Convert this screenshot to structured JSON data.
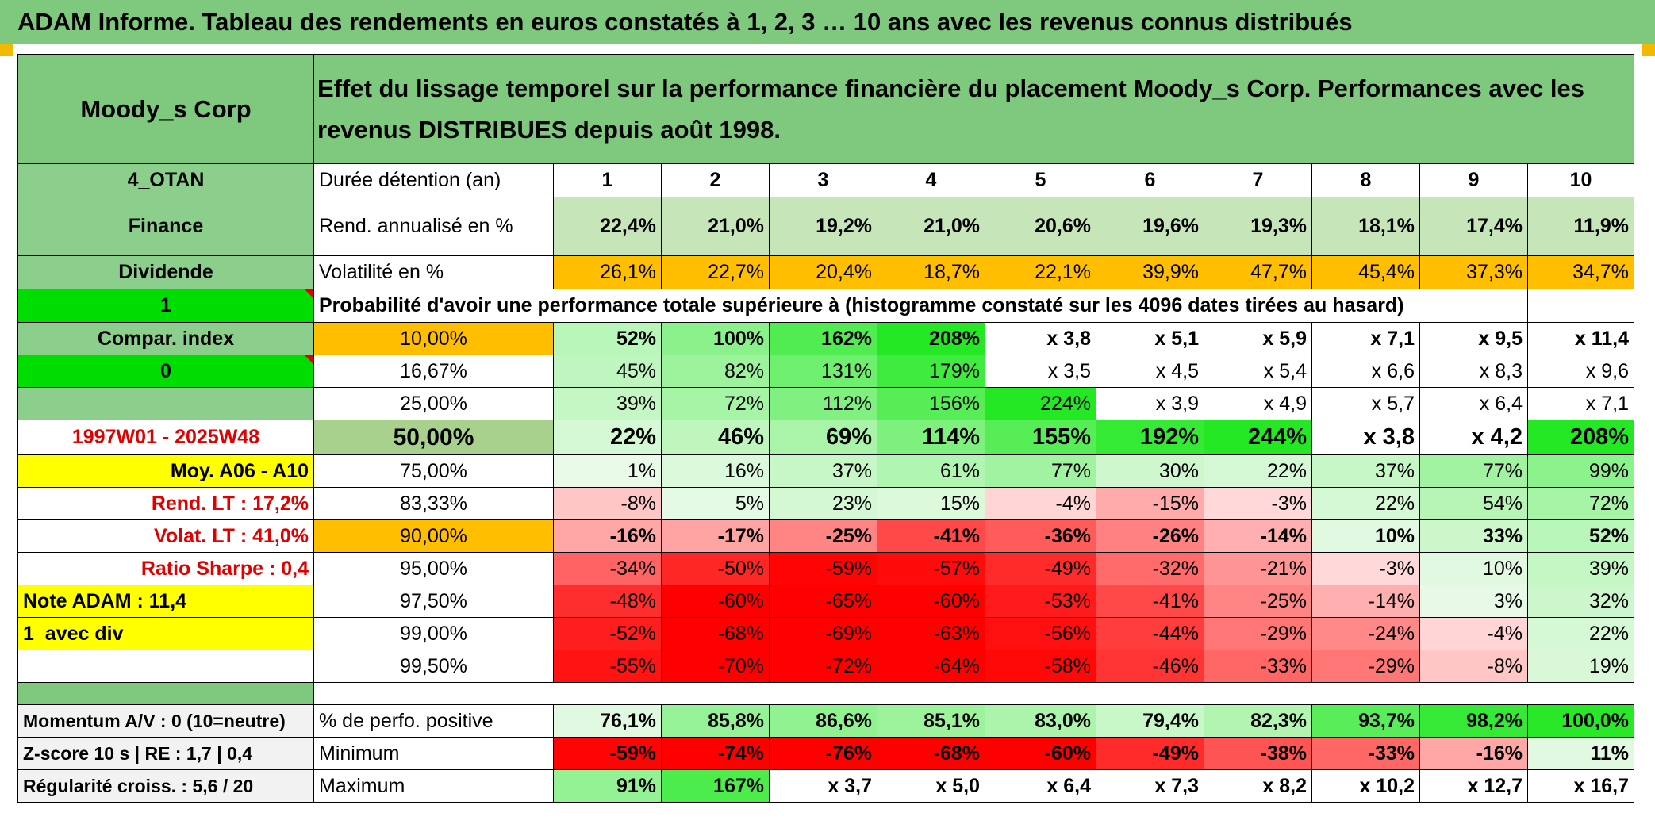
{
  "title": "ADAM Informe. Tableau des rendements en euros constatés à 1, 2, 3 … 10 ans avec les revenus connus distribués",
  "colors": {
    "header_green": "#7fc97f",
    "label_green": "#8ccf8c",
    "bright_green": "#00dd00",
    "orange": "#ffbe00",
    "yellow": "#ffff00",
    "grey": "#f2f2f2",
    "red_text": "#e00000"
  },
  "header": {
    "asset_name": "Moody_s Corp",
    "description": "Effet du lissage temporel sur la performance financière du placement Moody_s Corp. Performances avec les revenus DISTRIBUES depuis août 1998."
  },
  "left_labels": {
    "code": "4_OTAN",
    "sector": "Finance",
    "type": "Dividende",
    "flag1": "1",
    "compar": "Compar. index",
    "flag0": "0",
    "blank": "",
    "period": "1997W01 - 2025W48",
    "moy": "Moy. A06 - A10",
    "rend_lt": "Rend. LT :    17,2%",
    "volat_lt": "Volat. LT :    41,0%",
    "sharpe": "Ratio Sharpe :    0,4",
    "note": "Note ADAM : 11,4",
    "avec_div": "1_avec div"
  },
  "table": {
    "duration_label": "Durée détention (an)",
    "years": [
      "1",
      "2",
      "3",
      "4",
      "5",
      "6",
      "7",
      "8",
      "9",
      "10"
    ],
    "rend_label": "Rend. annualisé en %",
    "rend": [
      "22,4%",
      "21,0%",
      "19,2%",
      "21,0%",
      "20,6%",
      "19,6%",
      "19,3%",
      "18,1%",
      "17,4%",
      "11,9%"
    ],
    "vol_label": "Volatilité en %",
    "vol": [
      "26,1%",
      "22,7%",
      "20,4%",
      "18,7%",
      "22,1%",
      "39,9%",
      "47,7%",
      "45,4%",
      "37,3%",
      "34,7%"
    ],
    "prob_title": "Probabilité d'avoir une performance totale supérieure à (histogramme constaté sur les 4096 dates tirées au hasard)",
    "quantiles": [
      {
        "label": "10,00%",
        "values": [
          "52%",
          "100%",
          "162%",
          "208%",
          "x 3,8",
          "x 5,1",
          "x 5,9",
          "x 7,1",
          "x 9,5",
          "x 11,4"
        ]
      },
      {
        "label": "16,67%",
        "values": [
          "45%",
          "82%",
          "131%",
          "179%",
          "x 3,5",
          "x 4,5",
          "x 5,4",
          "x 6,6",
          "x 8,3",
          "x 9,6"
        ]
      },
      {
        "label": "25,00%",
        "values": [
          "39%",
          "72%",
          "112%",
          "156%",
          "224%",
          "x 3,9",
          "x 4,9",
          "x 5,7",
          "x 6,4",
          "x 7,1"
        ]
      },
      {
        "label": "50,00%",
        "values": [
          "22%",
          "46%",
          "69%",
          "114%",
          "155%",
          "192%",
          "244%",
          "x 3,8",
          "x 4,2",
          "208%"
        ]
      },
      {
        "label": "75,00%",
        "values": [
          "1%",
          "16%",
          "37%",
          "61%",
          "77%",
          "30%",
          "22%",
          "37%",
          "77%",
          "99%"
        ]
      },
      {
        "label": "83,33%",
        "values": [
          "-8%",
          "5%",
          "23%",
          "15%",
          "-4%",
          "-15%",
          "-3%",
          "22%",
          "54%",
          "72%"
        ]
      },
      {
        "label": "90,00%",
        "values": [
          "-16%",
          "-17%",
          "-25%",
          "-41%",
          "-36%",
          "-26%",
          "-14%",
          "10%",
          "33%",
          "52%"
        ]
      },
      {
        "label": "95,00%",
        "values": [
          "-34%",
          "-50%",
          "-59%",
          "-57%",
          "-49%",
          "-32%",
          "-21%",
          "-3%",
          "10%",
          "39%"
        ]
      },
      {
        "label": "97,50%",
        "values": [
          "-48%",
          "-60%",
          "-65%",
          "-60%",
          "-53%",
          "-41%",
          "-25%",
          "-14%",
          "3%",
          "32%"
        ]
      },
      {
        "label": "99,00%",
        "values": [
          "-52%",
          "-68%",
          "-69%",
          "-63%",
          "-56%",
          "-44%",
          "-29%",
          "-24%",
          "-4%",
          "22%"
        ]
      },
      {
        "label": "99,50%",
        "values": [
          "-55%",
          "-70%",
          "-72%",
          "-64%",
          "-58%",
          "-46%",
          "-33%",
          "-29%",
          "-8%",
          "19%"
        ]
      }
    ],
    "bottom": [
      {
        "left": "Momentum A/V : 0 (10=neutre)",
        "label": "% de perfo. positive",
        "values": [
          "76,1%",
          "85,8%",
          "86,6%",
          "85,1%",
          "83,0%",
          "79,4%",
          "82,3%",
          "93,7%",
          "98,2%",
          "100,0%"
        ]
      },
      {
        "left": "Z-score 10 s | RE : 1,7 | 0,4",
        "label": "Minimum",
        "values": [
          "-59%",
          "-74%",
          "-76%",
          "-68%",
          "-60%",
          "-49%",
          "-38%",
          "-33%",
          "-16%",
          "11%"
        ]
      },
      {
        "left": "Régularité croiss. : 5,6 / 20",
        "label": "Maximum",
        "values": [
          "91%",
          "167%",
          "x 3,7",
          "x 5,0",
          "x 6,4",
          "x 7,3",
          "x 8,2",
          "x 10,2",
          "x 12,7",
          "x 16,7"
        ]
      }
    ]
  }
}
